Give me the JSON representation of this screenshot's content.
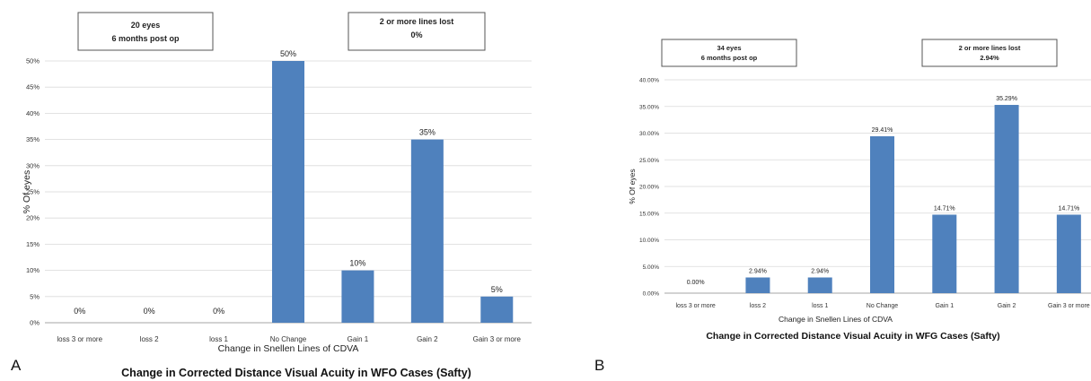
{
  "panels": {
    "a": {
      "letter": "A"
    },
    "b": {
      "letter": "B"
    }
  },
  "chart_data": [
    {
      "type": "bar",
      "title": "Change in Corrected Distance Visual Acuity in WFO Cases (Safty)",
      "xlabel": "Change in Snellen Lines of CDVA",
      "ylabel": "% Of eyes",
      "ylim": [
        0,
        50
      ],
      "y_ticks": [
        "0%",
        "5%",
        "10%",
        "15%",
        "20%",
        "25%",
        "30%",
        "35%",
        "40%",
        "45%",
        "50%"
      ],
      "categories": [
        "loss 3 or more",
        "loss 2",
        "loss 1",
        "No Change",
        "Gain 1",
        "Gain 2",
        "Gain 3 or more"
      ],
      "values": [
        0,
        0,
        0,
        50,
        10,
        35,
        5
      ],
      "data_labels": [
        "0%",
        "0%",
        "0%",
        "50%",
        "10%",
        "35%",
        "5%"
      ],
      "bar_color": "#4f81bd",
      "grid": true,
      "annotations": [
        {
          "lines": [
            "20 eyes",
            "6 months post op"
          ]
        },
        {
          "lines": [
            "2 or more lines lost",
            "0%"
          ]
        }
      ]
    },
    {
      "type": "bar",
      "title": "Change in Corrected Distance Visual Acuity in WFG Cases (Safty)",
      "xlabel": "Change in Snellen Lines of CDVA",
      "ylabel": "% Of eyes",
      "ylim": [
        0,
        40
      ],
      "y_ticks": [
        "0.00%",
        "5.00%",
        "10.00%",
        "15.00%",
        "20.00%",
        "25.00%",
        "30.00%",
        "35.00%",
        "40.00%"
      ],
      "categories": [
        "loss 3 or more",
        "loss 2",
        "loss 1",
        "No Change",
        "Gain 1",
        "Gain 2",
        "Gain 3 or more"
      ],
      "values": [
        0,
        2.94,
        2.94,
        29.41,
        14.71,
        35.29,
        14.71
      ],
      "data_labels": [
        "0.00%",
        "2.94%",
        "2.94%",
        "29.41%",
        "14.71%",
        "35.29%",
        "14.71%"
      ],
      "bar_color": "#4f81bd",
      "grid": true,
      "annotations": [
        {
          "lines": [
            "34 eyes",
            "6 months post op"
          ]
        },
        {
          "lines": [
            "2 or more lines lost",
            "2.94%"
          ]
        }
      ]
    }
  ]
}
